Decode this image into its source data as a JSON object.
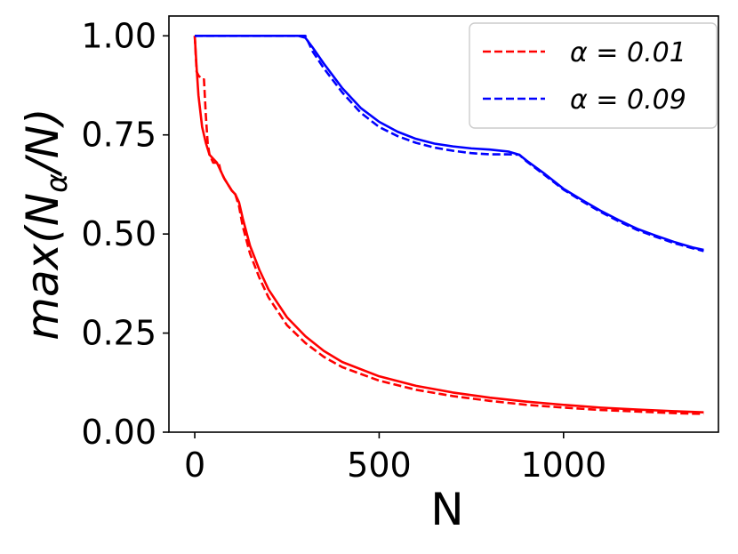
{
  "chart_data": {
    "type": "line",
    "xlabel": "N",
    "ylabel_prefix": "max(N",
    "ylabel_sub": "α",
    "ylabel_suffix": "/N)",
    "xlim": [
      -70,
      1420
    ],
    "ylim": [
      0,
      1.05
    ],
    "x_ticks": [
      0,
      500,
      1000
    ],
    "x_tick_labels": [
      "0",
      "500",
      "1000"
    ],
    "y_ticks": [
      0,
      0.25,
      0.5,
      0.75,
      1.0
    ],
    "y_tick_labels": [
      "0.00",
      "0.25",
      "0.50",
      "0.75",
      "1.00"
    ],
    "grid": false,
    "legend_position": "top-right",
    "legend": [
      {
        "label": "α = 0.01",
        "color": "#ff0000",
        "style": "dashed"
      },
      {
        "label": "α = 0.09",
        "color": "#0000ff",
        "style": "dashed"
      }
    ],
    "series": [
      {
        "color": "#ff0000",
        "style": "solid",
        "x": [
          0,
          5,
          10,
          20,
          30,
          40,
          50,
          60,
          80,
          100,
          110,
          120,
          130,
          150,
          175,
          200,
          250,
          300,
          350,
          400,
          500,
          600,
          700,
          800,
          900,
          1000,
          1100,
          1200,
          1300,
          1380
        ],
        "y": [
          1.0,
          0.92,
          0.85,
          0.77,
          0.73,
          0.7,
          0.69,
          0.68,
          0.64,
          0.61,
          0.6,
          0.58,
          0.54,
          0.47,
          0.41,
          0.36,
          0.29,
          0.242,
          0.205,
          0.177,
          0.141,
          0.117,
          0.1,
          0.087,
          0.077,
          0.069,
          0.062,
          0.057,
          0.053,
          0.05
        ]
      },
      {
        "color": "#ff0000",
        "style": "dashed",
        "x": [
          0,
          5,
          10,
          20,
          25,
          30,
          35,
          40,
          50,
          60,
          65,
          70,
          80,
          100,
          110,
          120,
          130,
          150,
          175,
          200,
          250,
          300,
          350,
          400,
          500,
          600,
          700,
          800,
          900,
          1000,
          1100,
          1200,
          1300,
          1380
        ],
        "y": [
          1.0,
          0.91,
          0.9,
          0.89,
          0.89,
          0.8,
          0.73,
          0.7,
          0.68,
          0.68,
          0.68,
          0.66,
          0.64,
          0.61,
          0.6,
          0.57,
          0.52,
          0.45,
          0.39,
          0.34,
          0.27,
          0.225,
          0.19,
          0.164,
          0.13,
          0.107,
          0.091,
          0.079,
          0.069,
          0.062,
          0.056,
          0.052,
          0.048,
          0.046
        ]
      },
      {
        "color": "#0000ff",
        "style": "solid",
        "x": [
          0,
          100,
          200,
          250,
          280,
          300,
          320,
          350,
          400,
          450,
          500,
          550,
          600,
          650,
          700,
          750,
          800,
          850,
          880,
          900,
          950,
          1000,
          1050,
          1100,
          1150,
          1200,
          1250,
          1300,
          1350,
          1380
        ],
        "y": [
          1.0,
          1.0,
          1.0,
          1.0,
          1.0,
          0.995,
          0.97,
          0.93,
          0.868,
          0.818,
          0.783,
          0.758,
          0.74,
          0.728,
          0.721,
          0.716,
          0.713,
          0.708,
          0.7,
          0.685,
          0.651,
          0.614,
          0.586,
          0.559,
          0.535,
          0.513,
          0.496,
          0.48,
          0.466,
          0.46
        ]
      },
      {
        "color": "#0000ff",
        "style": "dashed",
        "x": [
          0,
          100,
          200,
          250,
          280,
          290,
          300,
          320,
          350,
          400,
          450,
          500,
          550,
          600,
          650,
          700,
          750,
          800,
          850,
          880,
          900,
          950,
          1000,
          1050,
          1100,
          1150,
          1200,
          1250,
          1300,
          1350,
          1380
        ],
        "y": [
          1.0,
          1.0,
          1.0,
          1.0,
          1.0,
          1.0,
          1.0,
          0.96,
          0.918,
          0.857,
          0.806,
          0.77,
          0.747,
          0.73,
          0.718,
          0.71,
          0.704,
          0.701,
          0.701,
          0.7,
          0.683,
          0.648,
          0.612,
          0.583,
          0.556,
          0.532,
          0.51,
          0.493,
          0.477,
          0.464,
          0.457
        ]
      }
    ]
  }
}
